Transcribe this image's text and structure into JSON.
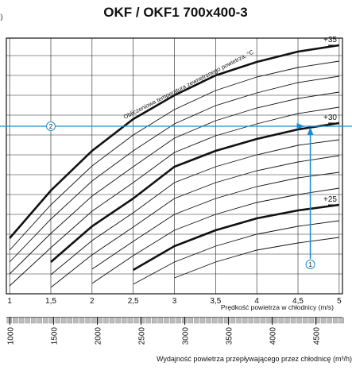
{
  "chart_data": {
    "type": "line",
    "title": "OKF / OKF1 700x400-3",
    "panel_label": "c)",
    "xlabel": "Prędkość powietrza w chłodnicy (m/s)",
    "x2label": "Wydajność powietrza przepływającego przez chłodnicę (m³/h)",
    "annotation": "Obliczeniowa temperatura zewnętrznego powietrza, °C",
    "x": [
      1,
      1.5,
      2,
      2.5,
      3,
      3.5,
      4,
      4.5,
      5
    ],
    "xlim": [
      0.96,
      5.04
    ],
    "xticks": [
      1,
      {
        "value": 1.5,
        "label": "1,5"
      },
      2,
      {
        "value": 2.5,
        "label": "2,5"
      },
      3,
      {
        "value": 3.5,
        "label": "3,5"
      },
      4,
      {
        "value": 4.5,
        "label": "4,5"
      },
      5
    ],
    "x2lim": [
      960,
      4803
    ],
    "x2ticks": [
      1000,
      1500,
      2000,
      2500,
      3000,
      3500,
      4000,
      4500
    ],
    "ylim": [
      0,
      322
    ],
    "ygrid": [
      25,
      50,
      75,
      100,
      125,
      150,
      175,
      200,
      225,
      250,
      275,
      300
    ],
    "grid": true,
    "color": "#111111",
    "series": [
      {
        "name": "+35",
        "values": [
          70,
          130,
          180,
          220,
          250,
          275,
          292,
          305,
          313
        ]
      },
      {
        "values": [
          55,
          112,
          161,
          200,
          232,
          256,
          273,
          285,
          293
        ]
      },
      {
        "values": [
          40,
          94,
          142,
          180,
          214,
          237,
          253,
          266,
          274
        ]
      },
      {
        "values": [
          25,
          76,
          123,
          160,
          196,
          218,
          234,
          246,
          254
        ]
      },
      {
        "values": [
          10,
          58,
          104,
          140,
          178,
          199,
          214,
          227,
          235
        ]
      },
      {
        "name": "+30",
        "values": [
          null,
          40,
          85,
          120,
          160,
          180,
          195,
          207,
          215
        ]
      },
      {
        "values": [
          null,
          24,
          67,
          102,
          140,
          160,
          175,
          187,
          194
        ]
      },
      {
        "values": [
          null,
          8,
          49,
          84,
          120,
          140,
          155,
          166,
          174
        ]
      },
      {
        "values": [
          null,
          null,
          31,
          66,
          100,
          120,
          135,
          146,
          153
        ]
      },
      {
        "values": [
          null,
          null,
          13,
          48,
          80,
          100,
          115,
          125,
          133
        ]
      },
      {
        "name": "+25",
        "values": [
          null,
          null,
          null,
          30,
          60,
          80,
          95,
          105,
          112
        ]
      },
      {
        "values": [
          null,
          null,
          null,
          12,
          40,
          60,
          75,
          85,
          92
        ]
      },
      {
        "values": [
          null,
          null,
          null,
          null,
          20,
          40,
          55,
          64,
          71
        ]
      }
    ],
    "example": {
      "x": 4.65,
      "y": 211,
      "y_start": 37,
      "color": "#1a8fd0",
      "labels": [
        "1",
        "2"
      ]
    }
  }
}
